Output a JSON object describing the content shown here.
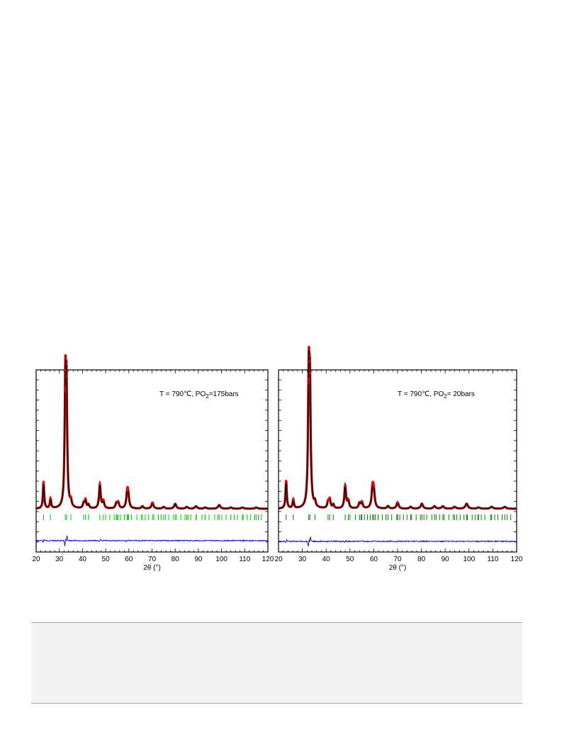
{
  "chart_data": [
    {
      "type": "line",
      "title": "",
      "annotation": "T = 790℃, PO",
      "annotation_sub": "2",
      "annotation_tail": "=175bars",
      "xlabel": "2θ (°)",
      "ylabel": "",
      "xlim": [
        20,
        120
      ],
      "xticks": [
        "20",
        "30",
        "40",
        "50",
        "60",
        "70",
        "80",
        "90",
        "100",
        "110",
        "120"
      ],
      "grid": false,
      "series": [
        {
          "role": "observed",
          "color": "#ff0000",
          "peaks": [
            [
              23.2,
              0.22
            ],
            [
              26.2,
              0.08
            ],
            [
              32.6,
              0.95
            ],
            [
              33.1,
              0.88
            ],
            [
              35.0,
              0.05
            ],
            [
              40.5,
              0.04
            ],
            [
              41.3,
              0.07
            ],
            [
              42.6,
              0.03
            ],
            [
              47.5,
              0.2
            ],
            [
              49.0,
              0.06
            ],
            [
              54.6,
              0.04
            ],
            [
              55.4,
              0.05
            ],
            [
              59.3,
              0.11
            ],
            [
              59.7,
              0.1
            ],
            [
              65.9,
              0.02
            ],
            [
              70.2,
              0.05
            ],
            [
              75.0,
              0.015
            ],
            [
              80.0,
              0.04
            ],
            [
              85.0,
              0.015
            ],
            [
              89.0,
              0.02
            ],
            [
              93.0,
              0.01
            ],
            [
              99.0,
              0.03
            ],
            [
              104.0,
              0.01
            ],
            [
              109.0,
              0.01
            ],
            [
              115.0,
              0.01
            ]
          ]
        },
        {
          "role": "calculated",
          "color": "#000000"
        },
        {
          "role": "difference",
          "color": "#0000ff"
        },
        {
          "role": "bragg_positions",
          "color": "#00cc00"
        }
      ]
    },
    {
      "type": "line",
      "title": "",
      "annotation": "T = 790℃, PO",
      "annotation_sub": "2",
      "annotation_tail": "= 20bars",
      "xlabel": "2θ (°)",
      "ylabel": "",
      "xlim": [
        20,
        120
      ],
      "xticks": [
        "20",
        "30",
        "40",
        "50",
        "60",
        "70",
        "80",
        "90",
        "100",
        "110",
        "120"
      ],
      "grid": false,
      "series": [
        {
          "role": "observed",
          "color": "#ff0000",
          "peaks": [
            [
              23.2,
              0.22
            ],
            [
              26.2,
              0.07
            ],
            [
              32.7,
              0.98
            ],
            [
              33.2,
              0.85
            ],
            [
              35.3,
              0.04
            ],
            [
              40.8,
              0.05
            ],
            [
              41.5,
              0.07
            ],
            [
              43.0,
              0.03
            ],
            [
              48.0,
              0.18
            ],
            [
              49.3,
              0.06
            ],
            [
              54.0,
              0.04
            ],
            [
              55.0,
              0.05
            ],
            [
              59.5,
              0.15
            ],
            [
              60.0,
              0.12
            ],
            [
              66.0,
              0.02
            ],
            [
              70.0,
              0.05
            ],
            [
              75.5,
              0.015
            ],
            [
              80.2,
              0.04
            ],
            [
              85.5,
              0.02
            ],
            [
              89.0,
              0.02
            ],
            [
              94.0,
              0.015
            ],
            [
              99.0,
              0.04
            ],
            [
              104.0,
              0.01
            ],
            [
              109.5,
              0.015
            ],
            [
              115.0,
              0.015
            ]
          ]
        },
        {
          "role": "calculated",
          "color": "#000000"
        },
        {
          "role": "difference",
          "color": "#0000ff"
        },
        {
          "role": "bragg_positions",
          "color": "#008000"
        }
      ]
    }
  ],
  "table": {
    "header_text": "",
    "body_text": ""
  }
}
